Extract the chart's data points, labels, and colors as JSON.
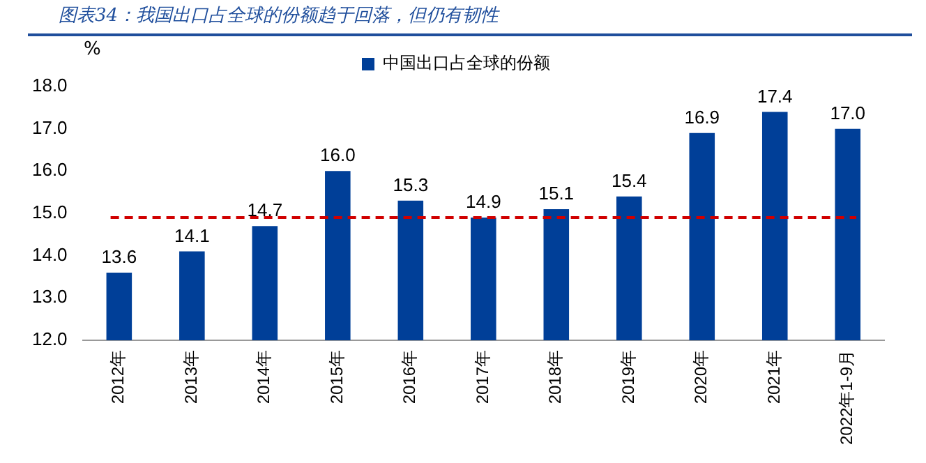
{
  "chart_data": {
    "type": "bar",
    "title": "图表34：我国出口占全球的份额趋于回落，但仍有韧性",
    "ylabel": "%",
    "categories": [
      "2012年",
      "2013年",
      "2014年",
      "2015年",
      "2016年",
      "2017年",
      "2018年",
      "2019年",
      "2020年",
      "2021年",
      "2022年1-9月"
    ],
    "series": [
      {
        "name": "中国出口占全球的份额",
        "color": "#003f98",
        "values": [
          13.6,
          14.1,
          14.7,
          16.0,
          15.3,
          14.9,
          15.1,
          15.4,
          16.9,
          17.4,
          17.0
        ],
        "value_labels": [
          "13.6",
          "14.1",
          "14.7",
          "16.0",
          "15.3",
          "14.9",
          "15.1",
          "15.4",
          "16.9",
          "17.4",
          "17.0"
        ]
      }
    ],
    "ylim": [
      12,
      18
    ],
    "yticks": [
      {
        "value": 12,
        "label": "12.0"
      },
      {
        "value": 13,
        "label": "13.0"
      },
      {
        "value": 14,
        "label": "14.0"
      },
      {
        "value": 15,
        "label": "15.0"
      },
      {
        "value": 16,
        "label": "16.0"
      },
      {
        "value": 17,
        "label": "17.0"
      },
      {
        "value": 18,
        "label": "18.0"
      }
    ],
    "ref_lines": [
      {
        "axis": "y",
        "value": 14.9,
        "color": "#d00000",
        "line_style": "dashed"
      }
    ],
    "legend": "top",
    "grid": false
  }
}
